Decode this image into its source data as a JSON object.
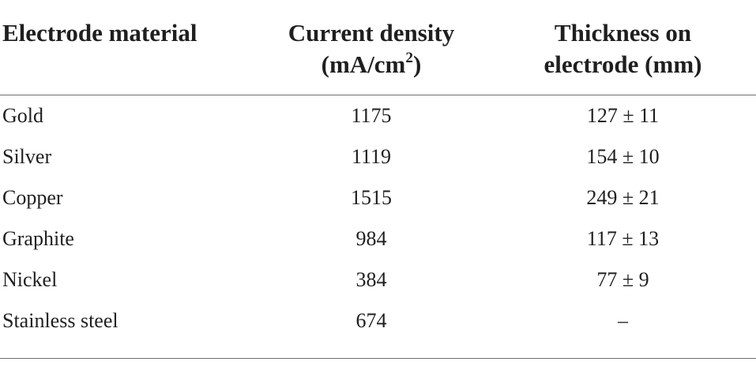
{
  "table": {
    "headers": {
      "material": "Electrode material",
      "current_line1": "Current density",
      "current_line2_pre": "(mA/cm",
      "current_line2_sup": "2",
      "current_line2_post": ")",
      "thickness_line1": "Thickness on",
      "thickness_line2": "electrode (mm)"
    },
    "rows": [
      {
        "material": "Gold",
        "current_density": "1175",
        "thickness": "127 ± 11"
      },
      {
        "material": "Silver",
        "current_density": "1119",
        "thickness": "154 ± 10"
      },
      {
        "material": "Copper",
        "current_density": "1515",
        "thickness": "249 ± 21"
      },
      {
        "material": "Graphite",
        "current_density": "984",
        "thickness": "117 ± 13"
      },
      {
        "material": "Nickel",
        "current_density": "384",
        "thickness": "77 ± 9"
      },
      {
        "material": "Stainless steel",
        "current_density": "674",
        "thickness": "–"
      }
    ]
  }
}
